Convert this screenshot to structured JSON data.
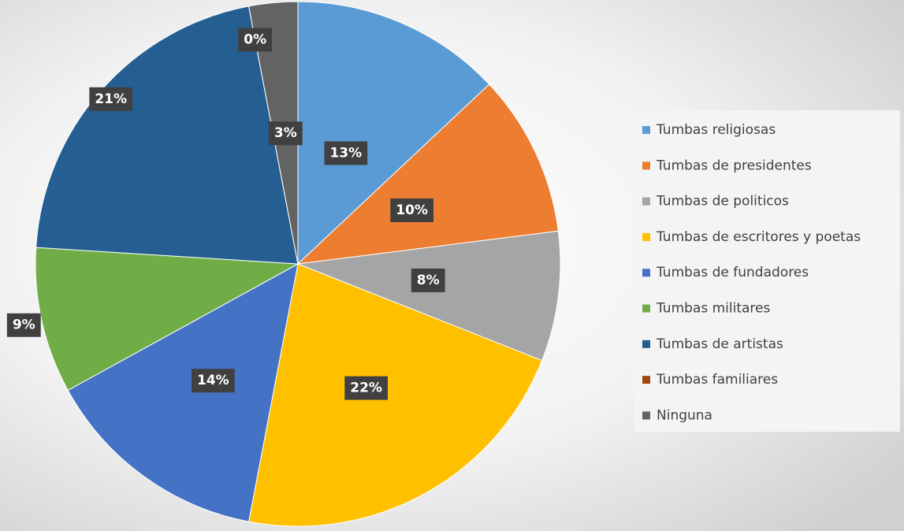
{
  "chart_data": {
    "type": "pie",
    "categories": [
      "Tumbas religiosas",
      "Tumbas de presidentes",
      "Tumbas de politicos",
      "Tumbas de escritores y poetas",
      "Tumbas de fundadores",
      "Tumbas militares",
      "Tumbas de artistas",
      "Tumbas familiares",
      "Ninguna"
    ],
    "values": [
      13,
      10,
      8,
      22,
      14,
      9,
      21,
      0,
      3
    ],
    "value_labels": [
      "13%",
      "10%",
      "8%",
      "22%",
      "14%",
      "9%",
      "21%",
      "0%",
      "3%"
    ],
    "colors": [
      "#5b9bd5",
      "#ed7d31",
      "#a5a5a5",
      "#ffc000",
      "#4472c4",
      "#70ad47",
      "#255e91",
      "#9e480e",
      "#636363"
    ],
    "legend": "right"
  }
}
